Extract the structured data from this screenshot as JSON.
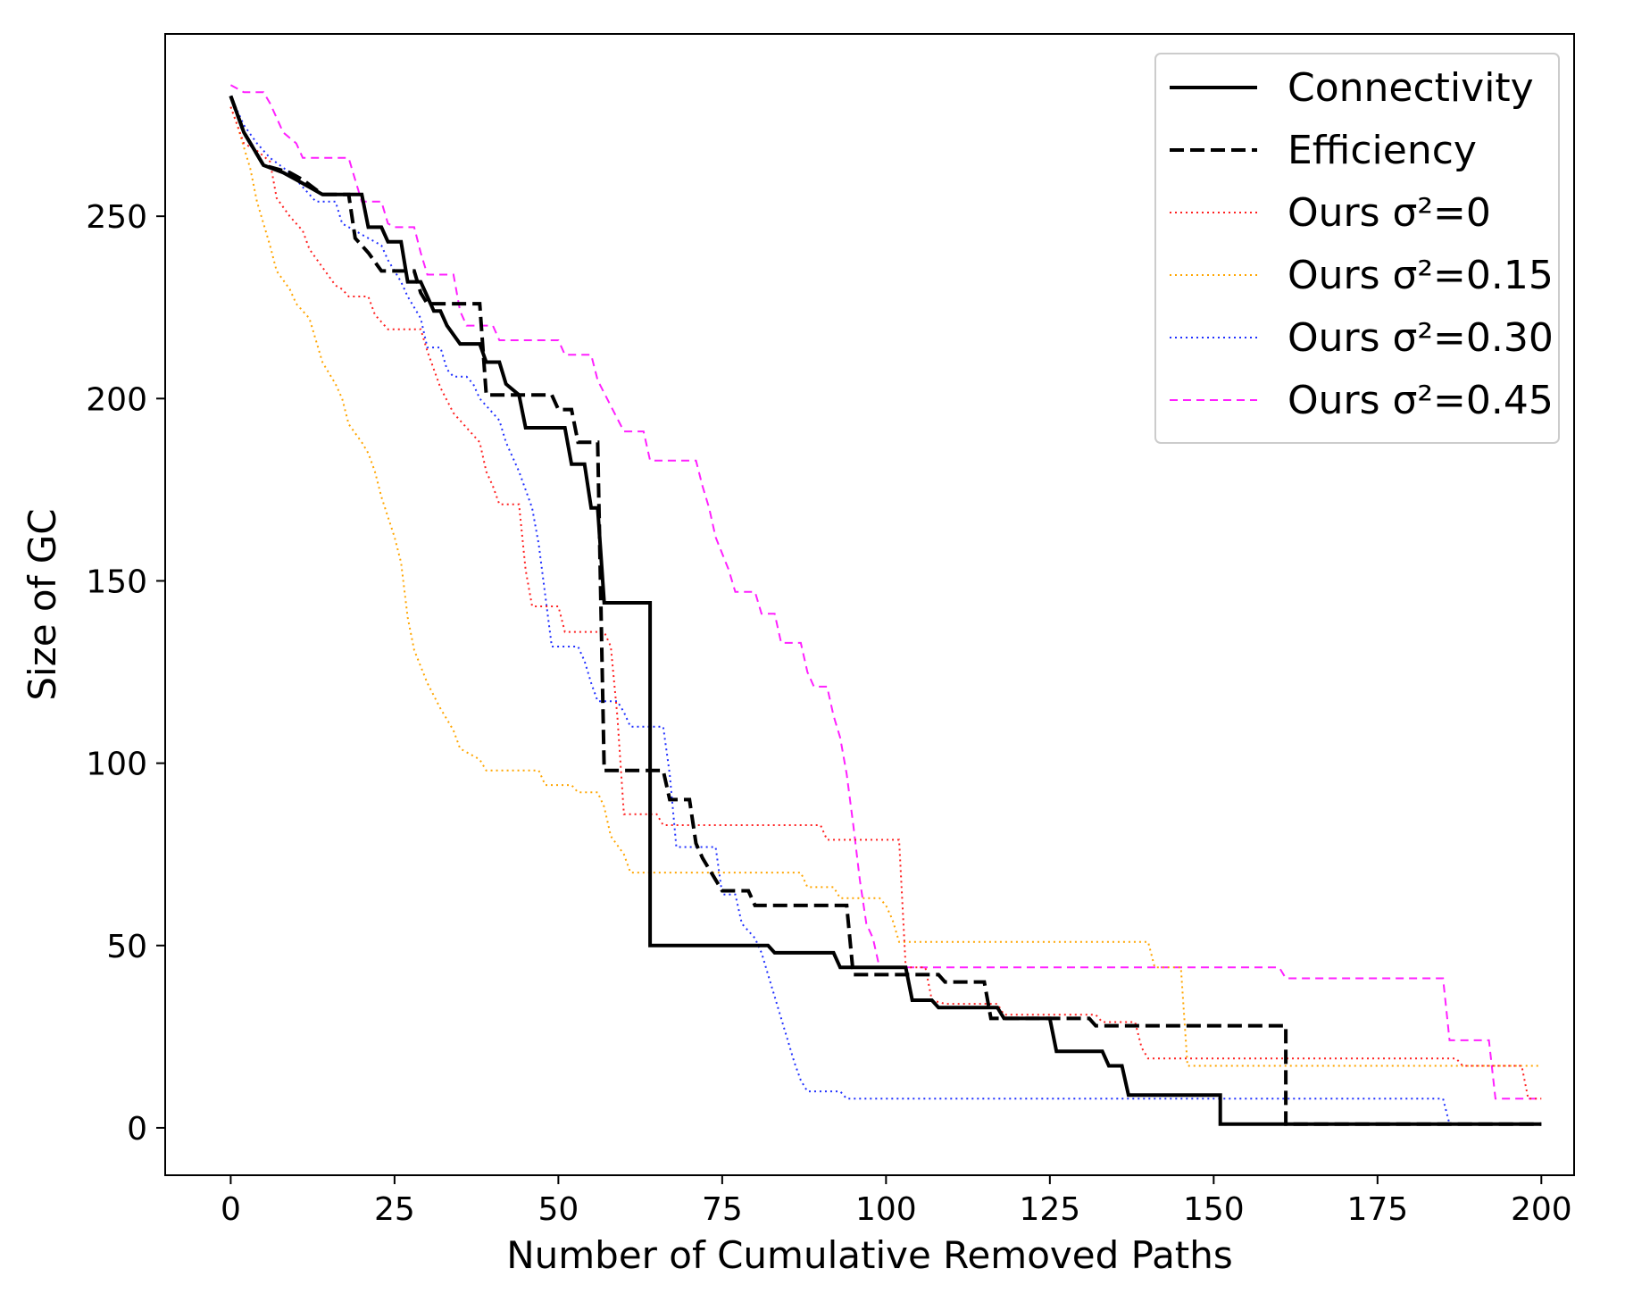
{
  "chart_data": {
    "type": "line",
    "title": "",
    "xlabel": "Number of Cumulative Removed Paths",
    "ylabel": "Size of GC",
    "xlim": [
      -10,
      205
    ],
    "ylim": [
      -13,
      300
    ],
    "xticks": [
      0,
      25,
      50,
      75,
      100,
      125,
      150,
      175,
      200
    ],
    "yticks": [
      0,
      50,
      100,
      150,
      200,
      250
    ],
    "grid": false,
    "legend_position": "top-right",
    "series": [
      {
        "name": "Connectivity",
        "color": "#000000",
        "style": "solid",
        "points": [
          [
            0,
            283
          ],
          [
            2,
            273
          ],
          [
            5,
            264
          ],
          [
            8,
            262
          ],
          [
            10,
            260
          ],
          [
            12,
            258
          ],
          [
            14,
            256
          ],
          [
            20,
            256
          ],
          [
            21,
            247
          ],
          [
            23,
            247
          ],
          [
            24,
            243
          ],
          [
            26,
            243
          ],
          [
            27,
            232
          ],
          [
            29,
            232
          ],
          [
            30,
            228
          ],
          [
            31,
            224
          ],
          [
            32,
            224
          ],
          [
            33,
            220
          ],
          [
            35,
            215
          ],
          [
            38,
            215
          ],
          [
            39,
            210
          ],
          [
            41,
            210
          ],
          [
            42,
            204
          ],
          [
            44,
            201
          ],
          [
            45,
            192
          ],
          [
            51,
            192
          ],
          [
            52,
            182
          ],
          [
            54,
            182
          ],
          [
            55,
            170
          ],
          [
            56,
            170
          ],
          [
            57,
            144
          ],
          [
            64,
            144
          ],
          [
            64,
            50
          ],
          [
            82,
            50
          ],
          [
            83,
            48
          ],
          [
            92,
            48
          ],
          [
            93,
            44
          ],
          [
            103,
            44
          ],
          [
            104,
            35
          ],
          [
            107,
            35
          ],
          [
            108,
            33
          ],
          [
            117,
            33
          ],
          [
            118,
            30
          ],
          [
            125,
            30
          ],
          [
            126,
            21
          ],
          [
            133,
            21
          ],
          [
            134,
            17
          ],
          [
            136,
            17
          ],
          [
            137,
            9
          ],
          [
            151,
            9
          ],
          [
            151,
            1
          ],
          [
            200,
            1
          ]
        ]
      },
      {
        "name": "Efficiency",
        "color": "#000000",
        "style": "dashed",
        "points": [
          [
            0,
            283
          ],
          [
            2,
            273
          ],
          [
            5,
            264
          ],
          [
            9,
            262
          ],
          [
            11,
            260
          ],
          [
            14,
            256
          ],
          [
            18,
            256
          ],
          [
            19,
            244
          ],
          [
            21,
            240
          ],
          [
            23,
            235
          ],
          [
            28,
            235
          ],
          [
            29,
            229
          ],
          [
            30,
            226
          ],
          [
            38,
            226
          ],
          [
            39,
            201
          ],
          [
            49,
            201
          ],
          [
            50,
            197
          ],
          [
            52,
            197
          ],
          [
            53,
            188
          ],
          [
            56,
            188
          ],
          [
            57,
            98
          ],
          [
            66,
            98
          ],
          [
            67,
            90
          ],
          [
            70,
            90
          ],
          [
            71,
            78
          ],
          [
            72,
            74
          ],
          [
            75,
            65
          ],
          [
            79,
            65
          ],
          [
            80,
            61
          ],
          [
            94,
            61
          ],
          [
            95,
            42
          ],
          [
            104,
            42
          ],
          [
            105,
            42
          ],
          [
            108,
            42
          ],
          [
            109,
            40
          ],
          [
            115,
            40
          ],
          [
            116,
            30
          ],
          [
            123,
            30
          ],
          [
            124,
            30
          ],
          [
            131,
            30
          ],
          [
            132,
            28
          ],
          [
            161,
            28
          ],
          [
            161,
            1
          ],
          [
            200,
            1
          ]
        ]
      },
      {
        "name": "Ours σ²=0",
        "color": "#ff2020",
        "style": "dotted",
        "points": [
          [
            0,
            280
          ],
          [
            2,
            270
          ],
          [
            4,
            268
          ],
          [
            6,
            265
          ],
          [
            7,
            255
          ],
          [
            9,
            250
          ],
          [
            11,
            246
          ],
          [
            12,
            241
          ],
          [
            14,
            236
          ],
          [
            16,
            231
          ],
          [
            17,
            230
          ],
          [
            18,
            228
          ],
          [
            21,
            228
          ],
          [
            22,
            223
          ],
          [
            24,
            219
          ],
          [
            29,
            219
          ],
          [
            30,
            213
          ],
          [
            32,
            203
          ],
          [
            34,
            196
          ],
          [
            36,
            192
          ],
          [
            38,
            188
          ],
          [
            39,
            180
          ],
          [
            40,
            176
          ],
          [
            41,
            171
          ],
          [
            44,
            171
          ],
          [
            45,
            153
          ],
          [
            46,
            143
          ],
          [
            50,
            143
          ],
          [
            51,
            136
          ],
          [
            57,
            136
          ],
          [
            58,
            132
          ],
          [
            59,
            113
          ],
          [
            60,
            86
          ],
          [
            65,
            86
          ],
          [
            66,
            83
          ],
          [
            78,
            83
          ],
          [
            90,
            83
          ],
          [
            91,
            79
          ],
          [
            102,
            79
          ],
          [
            103,
            44
          ],
          [
            106,
            44
          ],
          [
            107,
            35
          ],
          [
            109,
            34
          ],
          [
            117,
            34
          ],
          [
            118,
            31
          ],
          [
            132,
            31
          ],
          [
            133,
            29
          ],
          [
            138,
            29
          ],
          [
            139,
            22
          ],
          [
            140,
            19
          ],
          [
            187,
            19
          ],
          [
            188,
            17
          ],
          [
            197,
            17
          ],
          [
            198,
            8
          ],
          [
            200,
            8
          ]
        ]
      },
      {
        "name": "Ours σ²=0.15",
        "color": "#ffa500",
        "style": "dotted",
        "points": [
          [
            0,
            280
          ],
          [
            1,
            275
          ],
          [
            3,
            263
          ],
          [
            4,
            254
          ],
          [
            6,
            242
          ],
          [
            7,
            235
          ],
          [
            9,
            230
          ],
          [
            10,
            226
          ],
          [
            12,
            222
          ],
          [
            13,
            216
          ],
          [
            14,
            210
          ],
          [
            16,
            204
          ],
          [
            17,
            200
          ],
          [
            18,
            193
          ],
          [
            20,
            188
          ],
          [
            21,
            185
          ],
          [
            22,
            180
          ],
          [
            23,
            173
          ],
          [
            25,
            162
          ],
          [
            26,
            155
          ],
          [
            27,
            140
          ],
          [
            28,
            131
          ],
          [
            30,
            122
          ],
          [
            32,
            115
          ],
          [
            34,
            109
          ],
          [
            35,
            104
          ],
          [
            37,
            102
          ],
          [
            38,
            101
          ],
          [
            39,
            98
          ],
          [
            47,
            98
          ],
          [
            48,
            94
          ],
          [
            52,
            94
          ],
          [
            53,
            92
          ],
          [
            56,
            92
          ],
          [
            57,
            88
          ],
          [
            58,
            80
          ],
          [
            60,
            75
          ],
          [
            61,
            70
          ],
          [
            65,
            70
          ],
          [
            87,
            70
          ],
          [
            88,
            66
          ],
          [
            92,
            66
          ],
          [
            93,
            63
          ],
          [
            99,
            63
          ],
          [
            100,
            61
          ],
          [
            101,
            57
          ],
          [
            102,
            51
          ],
          [
            103,
            51
          ],
          [
            140,
            51
          ],
          [
            141,
            44
          ],
          [
            145,
            44
          ],
          [
            146,
            17
          ],
          [
            200,
            17
          ]
        ]
      },
      {
        "name": "Ours σ²=0.30",
        "color": "#2030ff",
        "style": "dotted",
        "points": [
          [
            0,
            283
          ],
          [
            2,
            275
          ],
          [
            4,
            270
          ],
          [
            6,
            266
          ],
          [
            9,
            262
          ],
          [
            11,
            258
          ],
          [
            13,
            254
          ],
          [
            16,
            254
          ],
          [
            17,
            248
          ],
          [
            19,
            246
          ],
          [
            21,
            244
          ],
          [
            23,
            242
          ],
          [
            24,
            238
          ],
          [
            26,
            232
          ],
          [
            27,
            228
          ],
          [
            29,
            222
          ],
          [
            30,
            214
          ],
          [
            32,
            214
          ],
          [
            33,
            208
          ],
          [
            34,
            206
          ],
          [
            36,
            206
          ],
          [
            37,
            204
          ],
          [
            38,
            200
          ],
          [
            40,
            196
          ],
          [
            41,
            194
          ],
          [
            42,
            188
          ],
          [
            44,
            180
          ],
          [
            46,
            170
          ],
          [
            47,
            160
          ],
          [
            48,
            146
          ],
          [
            49,
            132
          ],
          [
            53,
            132
          ],
          [
            54,
            128
          ],
          [
            55,
            122
          ],
          [
            56,
            117
          ],
          [
            59,
            117
          ],
          [
            60,
            114
          ],
          [
            61,
            110
          ],
          [
            66,
            110
          ],
          [
            67,
            97
          ],
          [
            68,
            77
          ],
          [
            74,
            77
          ],
          [
            75,
            64
          ],
          [
            77,
            64
          ],
          [
            78,
            56
          ],
          [
            80,
            52
          ],
          [
            81,
            48
          ],
          [
            82,
            42
          ],
          [
            83,
            36
          ],
          [
            84,
            30
          ],
          [
            85,
            24
          ],
          [
            86,
            18
          ],
          [
            87,
            13
          ],
          [
            88,
            10
          ],
          [
            93,
            10
          ],
          [
            94,
            8
          ],
          [
            96,
            8
          ],
          [
            100,
            8
          ],
          [
            185,
            8
          ],
          [
            186,
            1
          ],
          [
            200,
            1
          ]
        ]
      },
      {
        "name": "Ours σ²=0.45",
        "color": "#ff20ff",
        "style": "dashed",
        "points": [
          [
            0,
            286
          ],
          [
            2,
            284
          ],
          [
            5,
            284
          ],
          [
            6,
            281
          ],
          [
            7,
            277
          ],
          [
            8,
            273
          ],
          [
            10,
            270
          ],
          [
            11,
            266
          ],
          [
            18,
            266
          ],
          [
            19,
            260
          ],
          [
            20,
            254
          ],
          [
            23,
            254
          ],
          [
            24,
            248
          ],
          [
            25,
            247
          ],
          [
            28,
            247
          ],
          [
            29,
            240
          ],
          [
            30,
            234
          ],
          [
            34,
            234
          ],
          [
            35,
            224
          ],
          [
            36,
            220
          ],
          [
            40,
            220
          ],
          [
            41,
            216
          ],
          [
            50,
            216
          ],
          [
            51,
            212
          ],
          [
            55,
            212
          ],
          [
            56,
            205
          ],
          [
            58,
            198
          ],
          [
            60,
            191
          ],
          [
            63,
            191
          ],
          [
            64,
            183
          ],
          [
            71,
            183
          ],
          [
            72,
            176
          ],
          [
            73,
            170
          ],
          [
            74,
            162
          ],
          [
            76,
            153
          ],
          [
            77,
            147
          ],
          [
            80,
            147
          ],
          [
            81,
            141
          ],
          [
            83,
            141
          ],
          [
            84,
            133
          ],
          [
            87,
            133
          ],
          [
            88,
            125
          ],
          [
            89,
            121
          ],
          [
            91,
            121
          ],
          [
            92,
            113
          ],
          [
            93,
            107
          ],
          [
            94,
            97
          ],
          [
            95,
            83
          ],
          [
            96,
            68
          ],
          [
            97,
            56
          ],
          [
            98,
            52
          ],
          [
            99,
            44
          ],
          [
            120,
            44
          ],
          [
            160,
            44
          ],
          [
            161,
            41
          ],
          [
            185,
            41
          ],
          [
            186,
            24
          ],
          [
            192,
            24
          ],
          [
            193,
            8
          ],
          [
            200,
            8
          ]
        ]
      }
    ]
  }
}
